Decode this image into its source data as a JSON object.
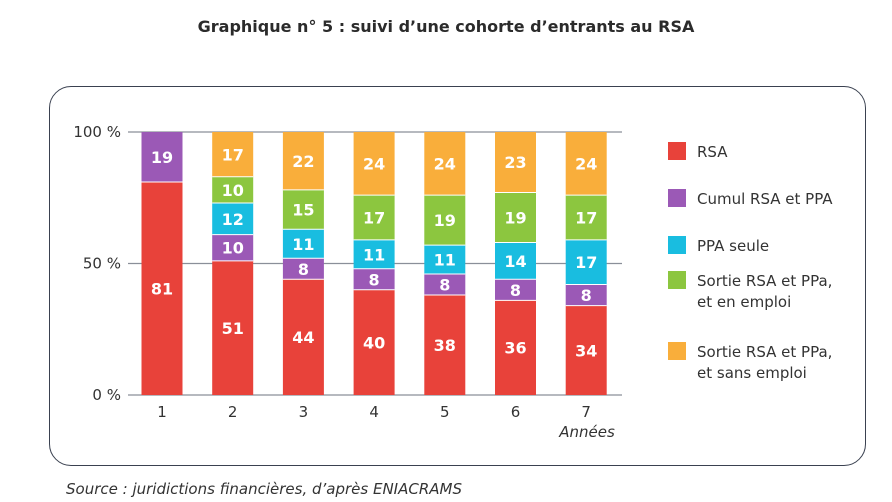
{
  "chart_data": {
    "type": "bar",
    "stacked": true,
    "title": "Graphique n° 5 : suivi d’une cohorte d’entrants au RSA",
    "categories": [
      "1",
      "2",
      "3",
      "4",
      "5",
      "6",
      "7"
    ],
    "xlabel": "Années",
    "ylabel": "",
    "ylim": [
      0,
      100
    ],
    "yticks": [
      "0 %",
      "50 %",
      "100 %"
    ],
    "grid": true,
    "legend_position": "right",
    "series": [
      {
        "name": "RSA",
        "color": "#e8423a",
        "values": [
          81,
          51,
          44,
          40,
          38,
          36,
          34
        ]
      },
      {
        "name": "Cumul RSA et PPA",
        "color": "#9b59b6",
        "values": [
          19,
          10,
          8,
          8,
          8,
          8,
          8
        ]
      },
      {
        "name": "PPA seule",
        "color": "#19bde0",
        "values": [
          0,
          12,
          11,
          11,
          11,
          14,
          17
        ]
      },
      {
        "name": "Sortie RSA et PPa, et en emploi",
        "color": "#8cc63f",
        "values": [
          0,
          10,
          15,
          17,
          19,
          19,
          17
        ]
      },
      {
        "name": "Sortie RSA et PPa, et sans emploi",
        "color": "#f9ae3b",
        "values": [
          0,
          17,
          22,
          24,
          24,
          23,
          24
        ]
      }
    ],
    "legend_lines": [
      [
        "RSA"
      ],
      [
        "Cumul RSA et PPA"
      ],
      [
        "PPA seule"
      ],
      [
        "Sortie RSA et PPa,",
        "et en emploi"
      ],
      [
        "Sortie RSA et PPa,",
        "et sans emploi"
      ]
    ]
  },
  "source": "Source : juridictions financières, d’après ENIACRAMS"
}
